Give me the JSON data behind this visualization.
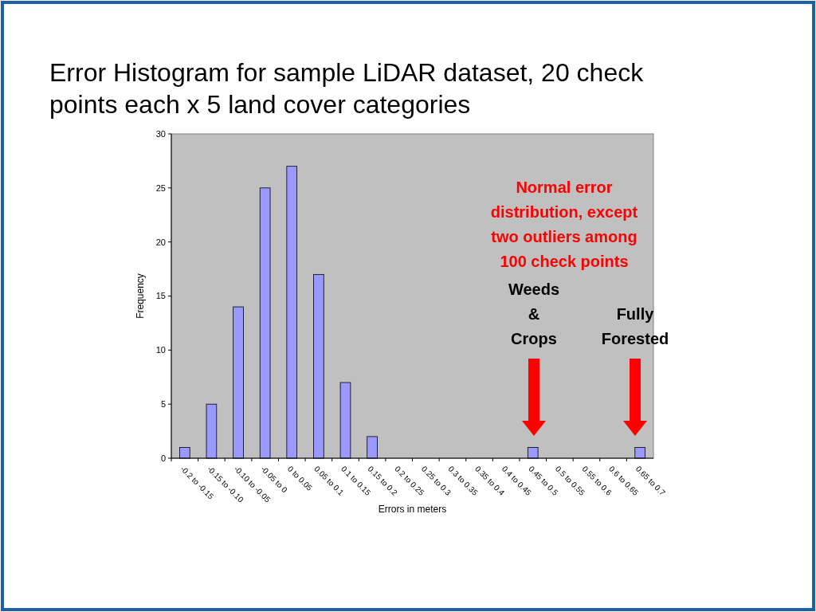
{
  "chart_data": {
    "type": "bar",
    "title": "Error Histogram for sample LiDAR dataset, 20 check points each x 5 land cover categories",
    "xlabel": "Errors in meters",
    "ylabel": "Frequency",
    "categories": [
      "-0.2 to -0.15",
      "-0.15 to -0.10",
      "-0.10 to -0.05",
      "-0.05 to 0",
      "0 to 0.05",
      "0.05 to 0.1",
      "0.1 to 0.15",
      "0.15 to 0.2",
      "0.2 to 0.25",
      "0.25 to 0.3",
      "0.3 to 0.35",
      "0.35 to 0.4",
      "0.4 to 0.45",
      "0.45 to 0.5",
      "0.5 to 0.55",
      "0.55 to 0.6",
      "0.6 to 0.65",
      "0.65 to 0.7"
    ],
    "values": [
      1,
      5,
      14,
      25,
      27,
      17,
      7,
      2,
      0,
      0,
      0,
      0,
      0,
      1,
      0,
      0,
      0,
      1
    ],
    "color": "#9999ff",
    "ylim": [
      0,
      30
    ],
    "yticks": [
      0,
      5,
      10,
      15,
      20,
      25,
      30
    ],
    "grid": false,
    "annotations": [
      "Normal error distribution, except two outliers among 100 check points",
      "Weeds & Crops",
      "Fully Forested"
    ]
  }
}
